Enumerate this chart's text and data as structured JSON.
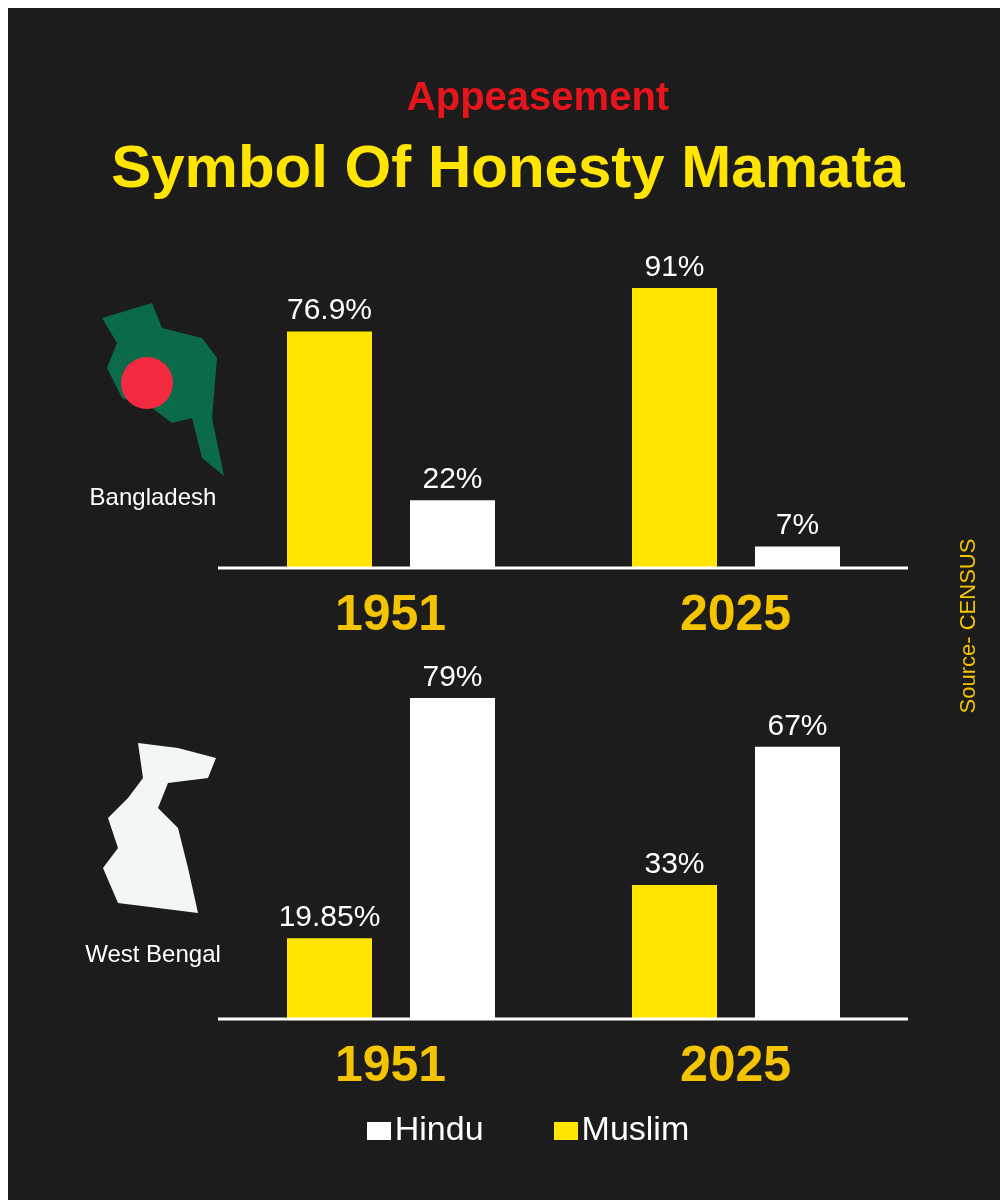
{
  "chart_data": [
    {
      "type": "bar",
      "title": "Symbol Of Honesty Mamata",
      "subtitle": "Bangladesh",
      "annotations": [
        "Appeasement"
      ],
      "categories": [
        "1951",
        "2025"
      ],
      "tick_labels": "x",
      "series": [
        {
          "color": "#ffe500",
          "values": [
            76.9,
            91
          ],
          "value_labels": [
            "76.9%",
            "91%"
          ]
        },
        {
          "color": "#ffffff",
          "values": [
            22,
            7
          ],
          "value_labels": [
            "22%",
            "7%"
          ]
        }
      ]
    },
    {
      "type": "bar",
      "subtitle": "West Bengal",
      "annotations": [
        "Source- CENSUS"
      ],
      "categories": [
        "1951",
        "2025"
      ],
      "tick_labels": "x",
      "legend": "bottom",
      "series": [
        {
          "name": "Muslim",
          "color": "#ffe500",
          "values": [
            19.85,
            33
          ],
          "value_labels": [
            "19.85%",
            "33%"
          ]
        },
        {
          "name": "Hindu",
          "color": "#ffffff",
          "values": [
            79,
            67
          ],
          "value_labels": [
            "79%",
            "67%"
          ]
        }
      ]
    }
  ]
}
